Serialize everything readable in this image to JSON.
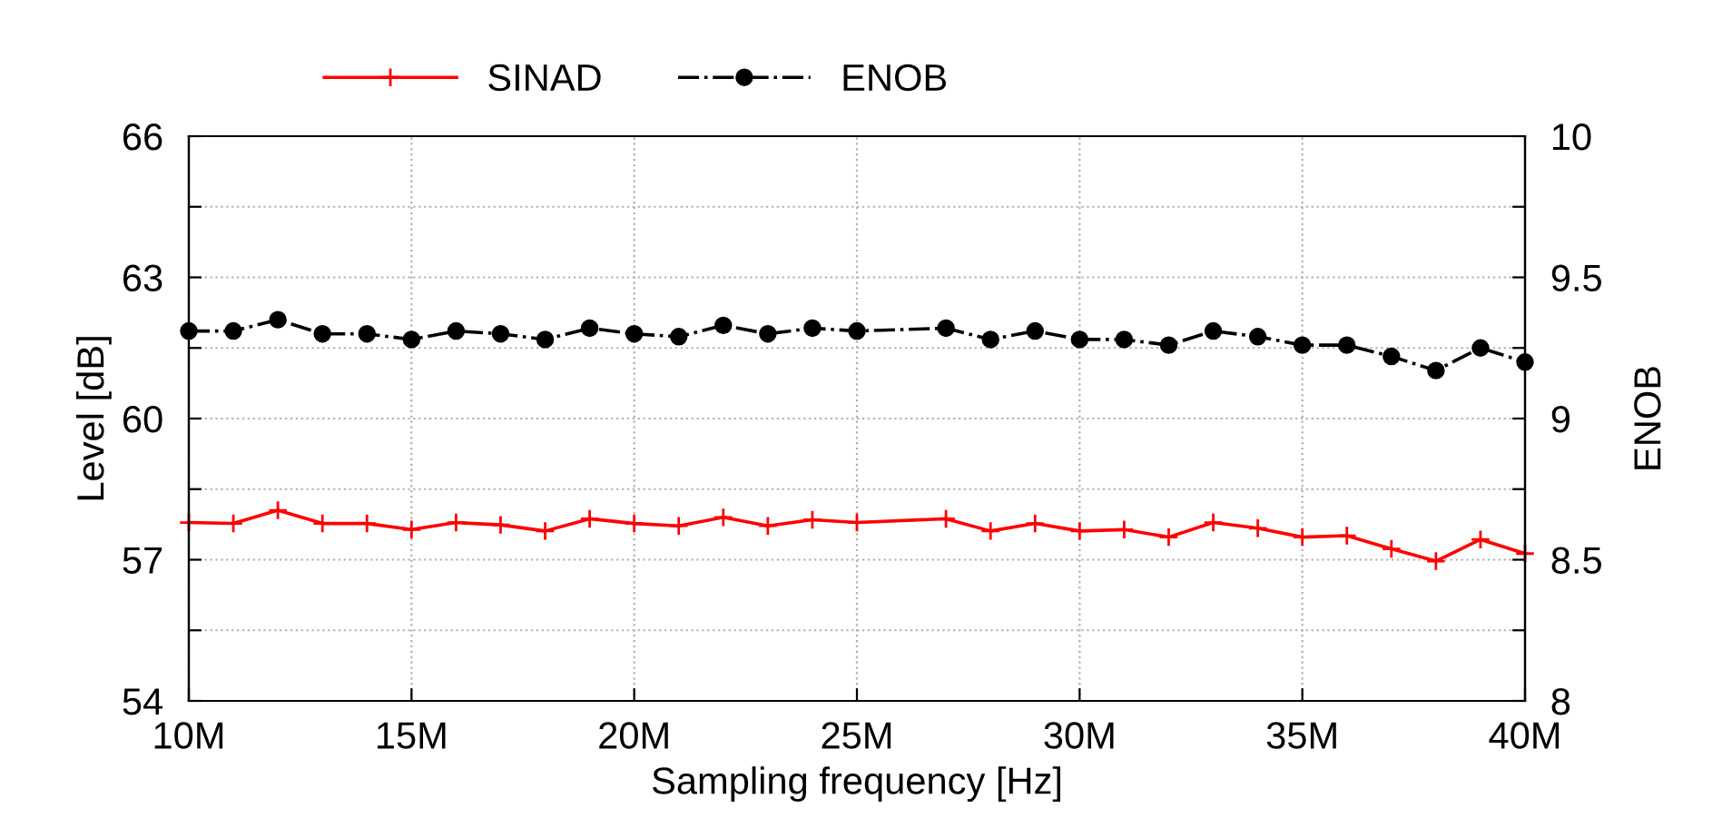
{
  "chart_data": {
    "type": "line",
    "xlabel": "Sampling frequency [Hz]",
    "ylabel": "Level [dB]",
    "y2label": "ENOB",
    "xlim": [
      10,
      40
    ],
    "xticks": [
      {
        "value": 10,
        "label": "10M"
      },
      {
        "value": 15,
        "label": "15M"
      },
      {
        "value": 20,
        "label": "20M"
      },
      {
        "value": 25,
        "label": "25M"
      },
      {
        "value": 30,
        "label": "30M"
      },
      {
        "value": 35,
        "label": "35M"
      },
      {
        "value": 40,
        "label": "40M"
      }
    ],
    "ylim": [
      54,
      66
    ],
    "yticks": [
      54,
      {
        "value": 55.5,
        "label": null
      },
      57,
      {
        "value": 58.5,
        "label": null
      },
      60,
      {
        "value": 61.5,
        "label": null
      },
      63,
      {
        "value": 64.5,
        "label": null
      },
      66
    ],
    "y2lim": [
      8,
      10
    ],
    "y2ticks": [
      8,
      {
        "value": 8.25,
        "label": null
      },
      8.5,
      {
        "value": 8.75,
        "label": null
      },
      9,
      {
        "value": 9.25,
        "label": null
      },
      9.5,
      {
        "value": 9.75,
        "label": null
      },
      10
    ],
    "grid": true,
    "legend": "top left",
    "x": [
      10,
      11,
      12,
      13,
      14,
      15,
      16,
      17,
      18,
      19,
      20,
      21,
      22,
      23,
      24,
      25,
      27,
      28,
      29,
      30,
      31,
      32,
      33,
      34,
      35,
      36,
      37,
      38,
      39,
      40
    ],
    "series": [
      {
        "name": "SINAD",
        "color": "#ff0000",
        "marker": "cross",
        "line_style": "solid",
        "values": [
          57.79,
          57.77,
          58.05,
          57.77,
          57.77,
          57.64,
          57.79,
          57.74,
          57.61,
          57.87,
          57.77,
          57.72,
          57.9,
          57.72,
          57.85,
          57.79,
          57.87,
          57.61,
          57.77,
          57.61,
          57.64,
          57.48,
          57.79,
          57.67,
          57.48,
          57.51,
          57.23,
          56.97,
          57.43,
          57.13
        ]
      },
      {
        "name": "ENOB",
        "color": "#000000",
        "marker": "circle",
        "line_style": "dashdot",
        "axis": "y2",
        "values": [
          9.31,
          9.31,
          9.35,
          9.3,
          9.3,
          9.28,
          9.31,
          9.3,
          9.28,
          9.32,
          9.3,
          9.29,
          9.33,
          9.3,
          9.32,
          9.31,
          9.32,
          9.28,
          9.31,
          9.28,
          9.28,
          9.26,
          9.31,
          9.29,
          9.26,
          9.26,
          9.22,
          9.17,
          9.25,
          9.2
        ]
      }
    ]
  }
}
